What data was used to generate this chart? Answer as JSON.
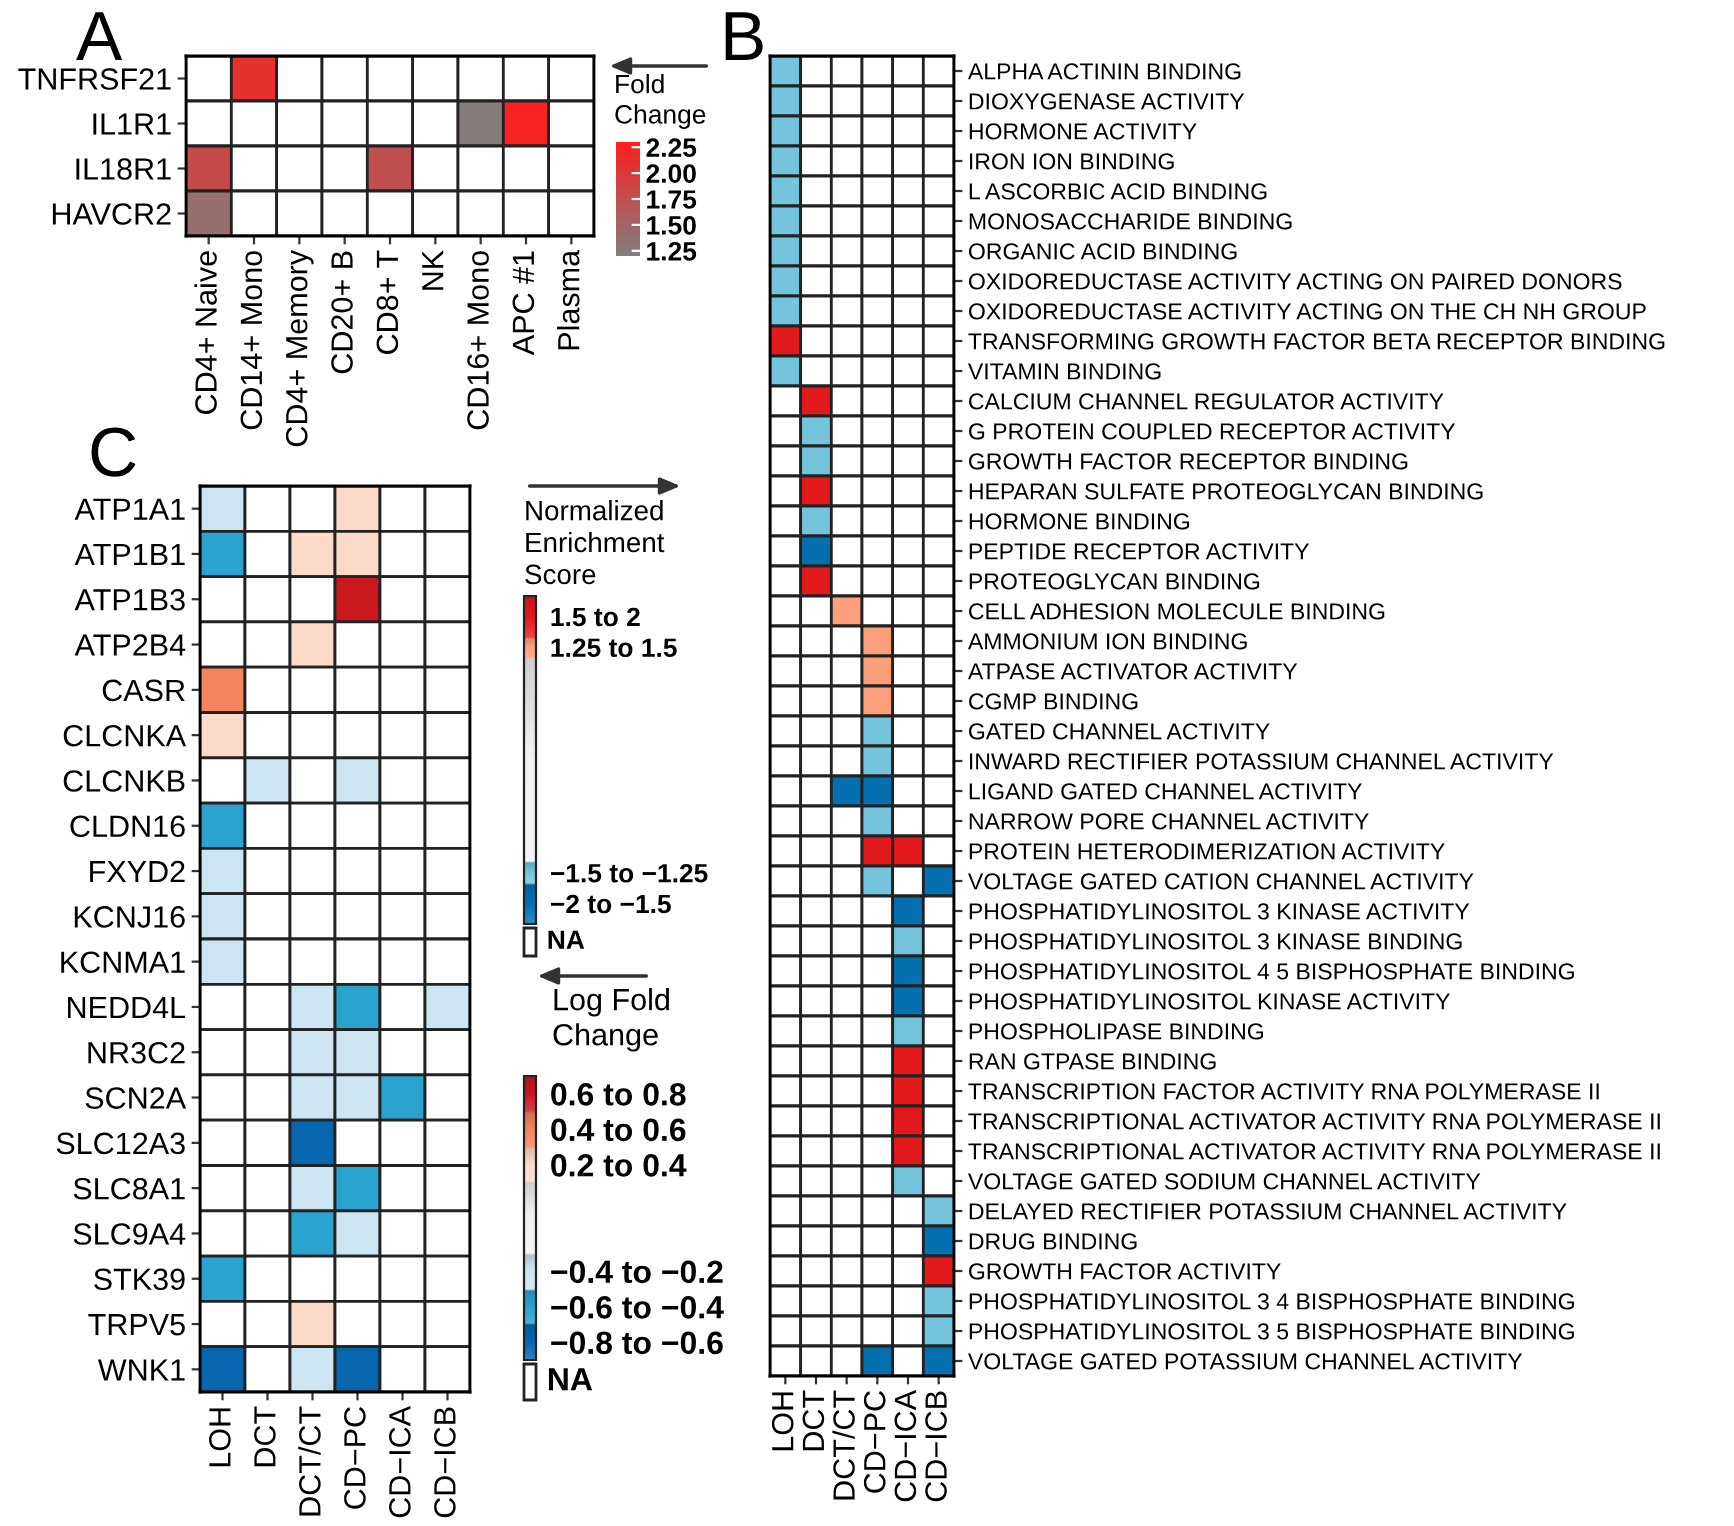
{
  "chart_data": [
    {
      "type": "heatmap",
      "title": "A",
      "clabel": "Fold\nChange",
      "categories": [
        "CD4+ Naive",
        "CD14+ Mono",
        "CD4+ Memory",
        "CD20+ B",
        "CD8+ T",
        "NK",
        "CD16+ Mono",
        "APC #1",
        "Plasma"
      ],
      "y_categories": [
        "TNFRSF21",
        "IL1R1",
        "IL18R1",
        "HAVCR2"
      ],
      "cells": [
        [
          null,
          2.1,
          null,
          null,
          null,
          null,
          null,
          null,
          null
        ],
        [
          null,
          null,
          null,
          null,
          null,
          null,
          1.25,
          2.25,
          null
        ],
        [
          1.8,
          null,
          null,
          null,
          1.75,
          null,
          null,
          null,
          null
        ],
        [
          1.4,
          null,
          null,
          null,
          null,
          null,
          null,
          null,
          null
        ]
      ],
      "clim": [
        1.2,
        2.3
      ],
      "cticks": [
        1.25,
        {
          "value": 1.5,
          "label": "1.50"
        },
        1.75,
        {
          "value": 2.0,
          "label": "2.00"
        },
        2.25
      ]
    },
    {
      "type": "heatmap",
      "title": "B",
      "clabel": "Normalized\nEnrichment\nScore",
      "annotations": [
        "NA"
      ],
      "categories": [
        "LOH",
        "DCT",
        "DCT/CT",
        "CD−PC",
        "CD−ICA",
        "CD−ICB"
      ],
      "y_categories": [
        "ALPHA ACTININ BINDING",
        "DIOXYGENASE ACTIVITY",
        "HORMONE ACTIVITY",
        "IRON ION BINDING",
        "L ASCORBIC ACID BINDING",
        "MONOSACCHARIDE BINDING",
        "ORGANIC ACID BINDING",
        "OXIDOREDUCTASE ACTIVITY ACTING ON PAIRED DONORS",
        "OXIDOREDUCTASE ACTIVITY ACTING ON THE CH NH GROUP",
        "TRANSFORMING GROWTH FACTOR BETA RECEPTOR BINDING",
        "VITAMIN BINDING",
        "CALCIUM CHANNEL REGULATOR ACTIVITY",
        "G PROTEIN COUPLED RECEPTOR ACTIVITY",
        "GROWTH FACTOR RECEPTOR BINDING",
        "HEPARAN SULFATE PROTEOGLYCAN BINDING",
        "HORMONE BINDING",
        "PEPTIDE RECEPTOR ACTIVITY",
        "PROTEOGLYCAN BINDING",
        "CELL ADHESION MOLECULE BINDING",
        "AMMONIUM ION BINDING",
        "ATPASE ACTIVATOR ACTIVITY",
        "CGMP BINDING",
        "GATED CHANNEL ACTIVITY",
        "INWARD RECTIFIER POTASSIUM CHANNEL ACTIVITY",
        "LIGAND GATED CHANNEL ACTIVITY",
        "NARROW PORE CHANNEL ACTIVITY",
        "PROTEIN HETERODIMERIZATION ACTIVITY",
        "VOLTAGE GATED CATION CHANNEL ACTIVITY",
        "PHOSPHATIDYLINOSITOL 3 KINASE ACTIVITY",
        "PHOSPHATIDYLINOSITOL 3 KINASE BINDING",
        "PHOSPHATIDYLINOSITOL 4 5 BISPHOSPHATE BINDING",
        "PHOSPHATIDYLINOSITOL KINASE ACTIVITY",
        "PHOSPHOLIPASE BINDING",
        "RAN GTPASE BINDING",
        "TRANSCRIPTION FACTOR ACTIVITY RNA POLYMERASE II",
        "TRANSCRIPTIONAL ACTIVATOR ACTIVITY RNA POLYMERASE II",
        "TRANSCRIPTIONAL ACTIVATOR ACTIVITY RNA POLYMERASE II",
        "VOLTAGE GATED SODIUM CHANNEL ACTIVITY",
        "DELAYED RECTIFIER POTASSIUM CHANNEL ACTIVITY",
        "DRUG BINDING",
        "GROWTH FACTOR ACTIVITY",
        "PHOSPHATIDYLINOSITOL 3 4 BISPHOSPHATE BINDING",
        "PHOSPHATIDYLINOSITOL 3 5 BISPHOSPHATE BINDING",
        "VOLTAGE GATED POTASSIUM CHANNEL ACTIVITY"
      ],
      "cells": [
        [
          -1.375,
          null,
          null,
          null,
          null,
          null
        ],
        [
          -1.375,
          null,
          null,
          null,
          null,
          null
        ],
        [
          -1.375,
          null,
          null,
          null,
          null,
          null
        ],
        [
          -1.375,
          null,
          null,
          null,
          null,
          null
        ],
        [
          -1.375,
          null,
          null,
          null,
          null,
          null
        ],
        [
          -1.375,
          null,
          null,
          null,
          null,
          null
        ],
        [
          -1.375,
          null,
          null,
          null,
          null,
          null
        ],
        [
          -1.375,
          null,
          null,
          null,
          null,
          null
        ],
        [
          -1.375,
          null,
          null,
          null,
          null,
          null
        ],
        [
          1.75,
          null,
          null,
          null,
          null,
          null
        ],
        [
          -1.375,
          null,
          null,
          null,
          null,
          null
        ],
        [
          null,
          1.75,
          null,
          null,
          null,
          null
        ],
        [
          null,
          -1.375,
          null,
          null,
          null,
          null
        ],
        [
          null,
          -1.375,
          null,
          null,
          null,
          null
        ],
        [
          null,
          1.75,
          null,
          null,
          null,
          null
        ],
        [
          null,
          -1.375,
          null,
          null,
          null,
          null
        ],
        [
          null,
          -1.75,
          null,
          null,
          null,
          null
        ],
        [
          null,
          1.75,
          null,
          null,
          null,
          null
        ],
        [
          null,
          null,
          1.375,
          null,
          null,
          null
        ],
        [
          null,
          null,
          null,
          1.375,
          null,
          null
        ],
        [
          null,
          null,
          null,
          1.375,
          null,
          null
        ],
        [
          null,
          null,
          null,
          1.375,
          null,
          null
        ],
        [
          null,
          null,
          null,
          -1.375,
          null,
          null
        ],
        [
          null,
          null,
          null,
          -1.375,
          null,
          null
        ],
        [
          null,
          null,
          -1.75,
          -1.75,
          null,
          null
        ],
        [
          null,
          null,
          null,
          -1.375,
          null,
          null
        ],
        [
          null,
          null,
          null,
          1.75,
          1.75,
          null
        ],
        [
          null,
          null,
          null,
          -1.375,
          null,
          -1.75
        ],
        [
          null,
          null,
          null,
          null,
          -1.75,
          null
        ],
        [
          null,
          null,
          null,
          null,
          -1.375,
          null
        ],
        [
          null,
          null,
          null,
          null,
          -1.75,
          null
        ],
        [
          null,
          null,
          null,
          null,
          -1.75,
          null
        ],
        [
          null,
          null,
          null,
          null,
          -1.375,
          null
        ],
        [
          null,
          null,
          null,
          null,
          1.75,
          null
        ],
        [
          null,
          null,
          null,
          null,
          1.75,
          null
        ],
        [
          null,
          null,
          null,
          null,
          1.75,
          null
        ],
        [
          null,
          null,
          null,
          null,
          1.75,
          null
        ],
        [
          null,
          null,
          null,
          null,
          -1.375,
          null
        ],
        [
          null,
          null,
          null,
          null,
          null,
          -1.375
        ],
        [
          null,
          null,
          null,
          null,
          null,
          -1.75
        ],
        [
          null,
          null,
          null,
          null,
          null,
          1.75
        ],
        [
          null,
          null,
          null,
          null,
          null,
          -1.375
        ],
        [
          null,
          null,
          null,
          null,
          null,
          -1.375
        ],
        [
          null,
          null,
          null,
          -1.75,
          null,
          -1.75
        ]
      ],
      "clim": [
        -2,
        2
      ],
      "cticks": [
        {
          "value": -1.75,
          "label": "−2 to −1.5"
        },
        {
          "value": -1.375,
          "label": "−1.5 to −1.25"
        },
        {
          "value": 1.375,
          "label": "1.25 to 1.5"
        },
        {
          "value": 1.75,
          "label": "1.5 to 2"
        }
      ]
    },
    {
      "type": "heatmap",
      "title": "C",
      "clabel": "Log Fold\nChange",
      "annotations": [
        "NA"
      ],
      "categories": [
        "LOH",
        "DCT",
        "DCT/CT",
        "CD−PC",
        "CD−ICA",
        "CD−ICB"
      ],
      "y_categories": [
        "ATP1A1",
        "ATP1B1",
        "ATP1B3",
        "ATP2B4",
        "CASR",
        "CLCNKA",
        "CLCNKB",
        "CLDN16",
        "FXYD2",
        "KCNJ16",
        "KCNMA1",
        "NEDD4L",
        "NR3C2",
        "SCN2A",
        "SLC12A3",
        "SLC8A1",
        "SLC9A4",
        "STK39",
        "TRPV5",
        "WNK1"
      ],
      "cells": [
        [
          -0.3,
          null,
          null,
          0.3,
          null,
          null
        ],
        [
          -0.5,
          null,
          0.3,
          0.3,
          null,
          null
        ],
        [
          null,
          null,
          null,
          0.7,
          null,
          null
        ],
        [
          null,
          null,
          0.3,
          null,
          null,
          null
        ],
        [
          0.5,
          null,
          null,
          null,
          null,
          null
        ],
        [
          0.3,
          null,
          null,
          null,
          null,
          null
        ],
        [
          null,
          -0.3,
          null,
          -0.3,
          null,
          null
        ],
        [
          -0.5,
          null,
          null,
          null,
          null,
          null
        ],
        [
          -0.3,
          null,
          null,
          null,
          null,
          null
        ],
        [
          -0.3,
          null,
          null,
          null,
          null,
          null
        ],
        [
          -0.3,
          null,
          null,
          null,
          null,
          null
        ],
        [
          null,
          null,
          -0.3,
          -0.5,
          null,
          -0.3
        ],
        [
          null,
          null,
          -0.3,
          -0.3,
          null,
          null
        ],
        [
          null,
          null,
          -0.3,
          -0.3,
          -0.5,
          null
        ],
        [
          null,
          null,
          -0.7,
          null,
          null,
          null
        ],
        [
          null,
          null,
          -0.3,
          -0.5,
          null,
          null
        ],
        [
          null,
          null,
          -0.5,
          -0.3,
          null,
          null
        ],
        [
          -0.5,
          null,
          null,
          null,
          null,
          null
        ],
        [
          null,
          null,
          0.3,
          null,
          null,
          null
        ],
        [
          -0.7,
          null,
          -0.3,
          -0.7,
          null,
          null
        ]
      ],
      "clim": [
        -0.8,
        0.8
      ],
      "cticks": [
        {
          "value": -0.7,
          "label": "−0.8 to −0.6"
        },
        {
          "value": -0.5,
          "label": "−0.6 to −0.4"
        },
        {
          "value": -0.3,
          "label": "−0.4 to −0.2"
        },
        {
          "value": 0.3,
          "label": "0.2 to 0.4"
        },
        {
          "value": 0.5,
          "label": "0.4 to 0.6"
        },
        {
          "value": 0.7,
          "label": "0.6 to 0.8"
        }
      ]
    }
  ]
}
